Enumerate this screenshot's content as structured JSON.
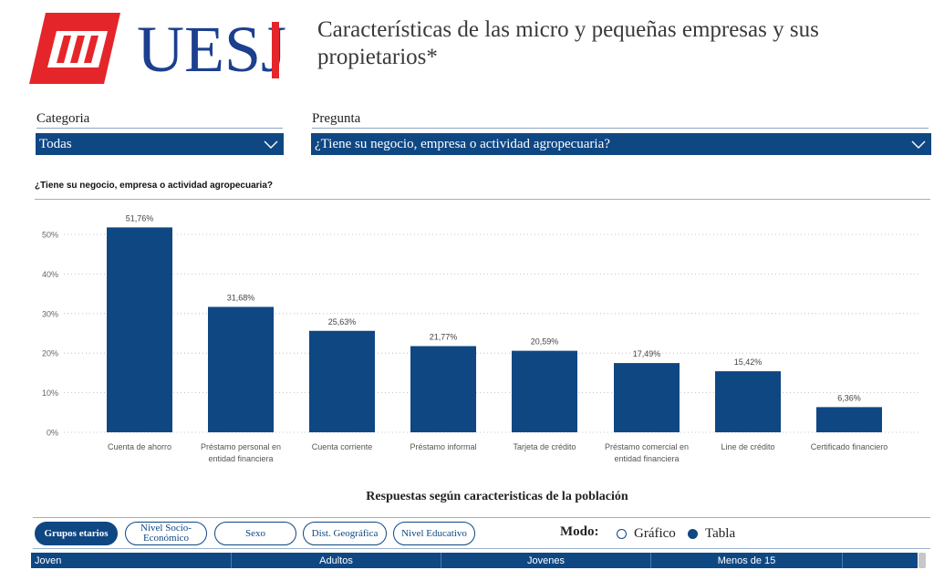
{
  "header": {
    "logo_text": "UESJ",
    "title": "Características de las micro y pequeñas empresas y sus propietarios*"
  },
  "filters": {
    "categoria_label": "Categoria",
    "categoria_value": "Todas",
    "pregunta_label": "Pregunta",
    "pregunta_value": "¿Tiene su negocio, empresa o actividad agropecuaria?"
  },
  "chart_title": "¿Tiene su negocio, empresa o actividad agropecuaria?",
  "chart_data": {
    "type": "bar",
    "title": "¿Tiene su negocio, empresa o actividad agropecuaria?",
    "categories": [
      "Cuenta de ahorro",
      "Préstamo personal en entidad financiera",
      "Cuenta corriente",
      "Préstamo informal",
      "Tarjeta de crédito",
      "Préstamo comercial en entidad financiera",
      "Line de crédito",
      "Certificado financiero"
    ],
    "category_lines": [
      [
        "Cuenta de ahorro"
      ],
      [
        "Préstamo personal en",
        "entidad financiera"
      ],
      [
        "Cuenta corriente"
      ],
      [
        "Préstamo informal"
      ],
      [
        "Tarjeta de crédito"
      ],
      [
        "Préstamo comercial en",
        "entidad financiera"
      ],
      [
        "Line de crédito"
      ],
      [
        "Certificado financiero"
      ]
    ],
    "values": [
      51.76,
      31.68,
      25.63,
      21.77,
      20.59,
      17.49,
      15.42,
      6.36
    ],
    "value_labels": [
      "51,76%",
      "31,68%",
      "25,63%",
      "21,77%",
      "20,59%",
      "17,49%",
      "15,42%",
      "6,36%"
    ],
    "ylim": [
      0,
      55
    ],
    "yticks": [
      0,
      10,
      20,
      30,
      40,
      50
    ],
    "ytick_labels": [
      "0%",
      "10%",
      "20%",
      "30%",
      "40%",
      "50%"
    ],
    "grid": true,
    "bar_color": "#0f4783"
  },
  "section_title": "Respuestas según caracteristicas de la población",
  "tabs": [
    {
      "label": "Grupos etarios",
      "active": true
    },
    {
      "label": "Nivel Socio-Económico",
      "active": false
    },
    {
      "label": "Sexo",
      "active": false
    },
    {
      "label": "Dist. Geográfica",
      "active": false
    },
    {
      "label": "Nivel Educativo",
      "active": false
    }
  ],
  "modo": {
    "label": "Modo:",
    "options": [
      {
        "label": "Gráfico",
        "selected": false
      },
      {
        "label": "Tabla",
        "selected": true
      }
    ]
  },
  "table": {
    "headers": [
      "Joven",
      "Adultos",
      "Jovenes",
      "Menos de 15"
    ]
  },
  "colors": {
    "primary": "#0f4783",
    "logo_red": "#e4262a",
    "logo_blue": "#1c3f8f"
  }
}
